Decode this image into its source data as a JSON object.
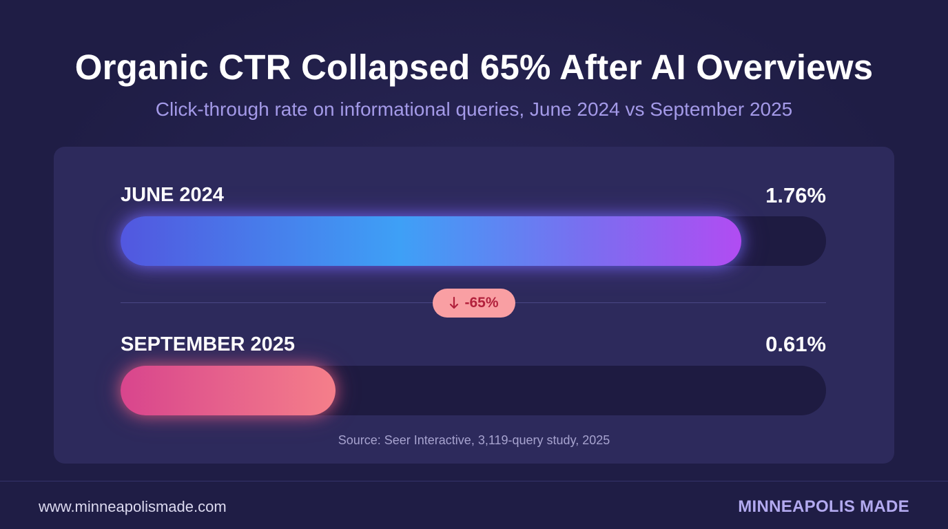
{
  "title": "Organic CTR Collapsed 65% After AI Overviews",
  "subtitle": "Click-through rate on informational queries, June 2024 vs September 2025",
  "chart_data": {
    "type": "bar",
    "orientation": "horizontal",
    "categories": [
      "JUNE 2024",
      "SEPTEMBER 2025"
    ],
    "values": [
      1.76,
      0.61
    ],
    "value_labels": [
      "1.76%",
      "0.61%"
    ],
    "unit": "%",
    "xlim": [
      0,
      2.0
    ],
    "grid": false,
    "colors": {
      "june_start": "#5257df",
      "june_end": "#b14cf2",
      "sept_start": "#d8458d",
      "sept_end": "#f57f8a"
    },
    "annotation": "-65%",
    "source": "Source: Seer Interactive, 3,119-query study, 2025"
  },
  "badge": {
    "icon": "arrow-down-icon",
    "text": "-65%",
    "background": "#f99fa3",
    "color": "#b2213c"
  },
  "footer": {
    "url": "www.minneapolismade.com",
    "brand": "MINNEAPOLIS MADE"
  },
  "colors": {
    "background": "#1f1d45",
    "panel": "#2d2a5c",
    "subtitle": "#a49ae8",
    "brand": "#b3aaf0"
  }
}
